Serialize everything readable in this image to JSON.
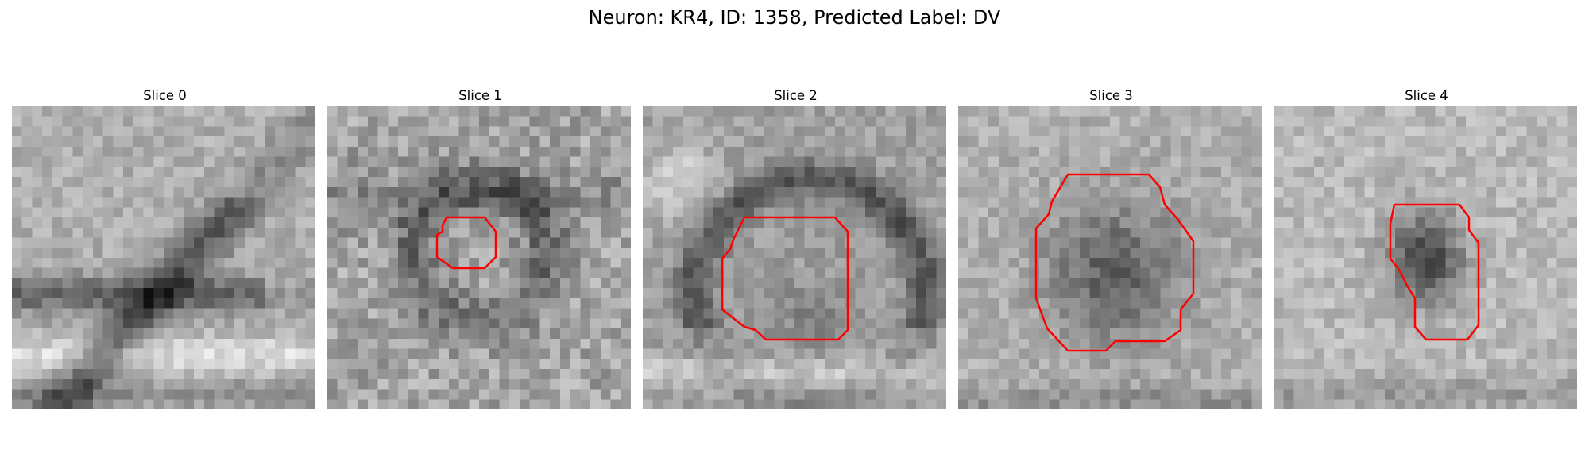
{
  "figure": {
    "title": "Neuron: KR4, ID: 1358, Predicted Label: DV"
  },
  "colors": {
    "contour": "#ff0000",
    "background": "#ffffff"
  },
  "panels": [
    {
      "title": "Slice 0",
      "has_contour": false
    },
    {
      "title": "Slice 1",
      "has_contour": true
    },
    {
      "title": "Slice 2",
      "has_contour": true
    },
    {
      "title": "Slice 3",
      "has_contour": true
    },
    {
      "title": "Slice 4",
      "has_contour": true
    }
  ]
}
